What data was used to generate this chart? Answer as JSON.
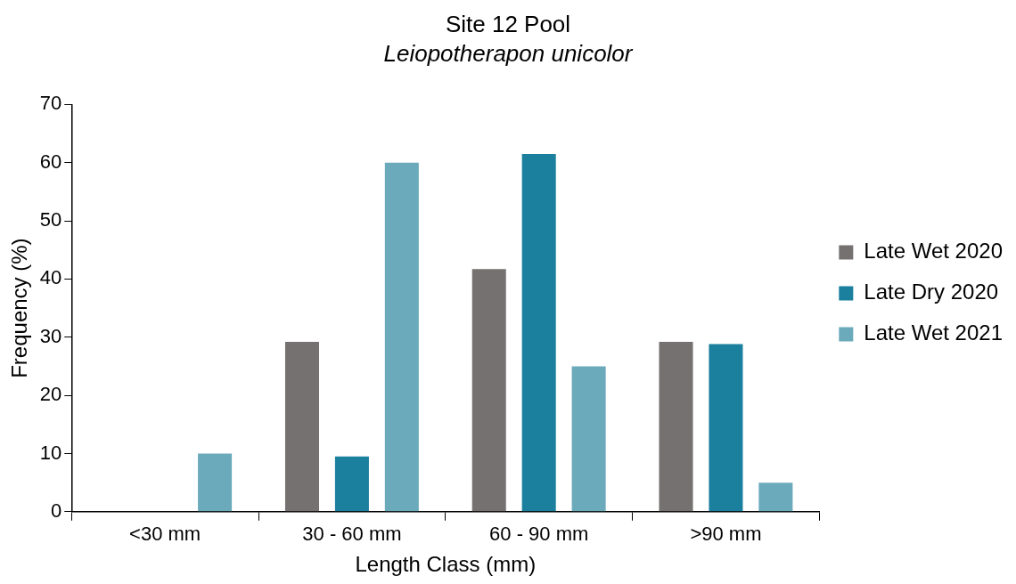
{
  "chart_data": {
    "type": "bar",
    "title": "Site 12 Pool",
    "subtitle": "Leiopotherapon unicolor",
    "xlabel": "Length Class (mm)",
    "ylabel": "Frequency (%)",
    "categories": [
      "<30 mm",
      "30 - 60 mm",
      "60 - 90 mm",
      ">90 mm"
    ],
    "series": [
      {
        "name": "Late Wet 2020",
        "color": "#767171",
        "values": [
          0,
          29.2,
          41.7,
          29.2
        ]
      },
      {
        "name": "Late Dry 2020",
        "color": "#1b7f9e",
        "values": [
          0,
          9.5,
          61.5,
          28.8
        ]
      },
      {
        "name": "Late Wet 2021",
        "color": "#6aaabb",
        "values": [
          10,
          60,
          25,
          5
        ]
      }
    ],
    "ylim": [
      0,
      70
    ],
    "yticks": [
      0,
      10,
      20,
      30,
      40,
      50,
      60,
      70
    ],
    "grid": false,
    "legend": "right"
  }
}
